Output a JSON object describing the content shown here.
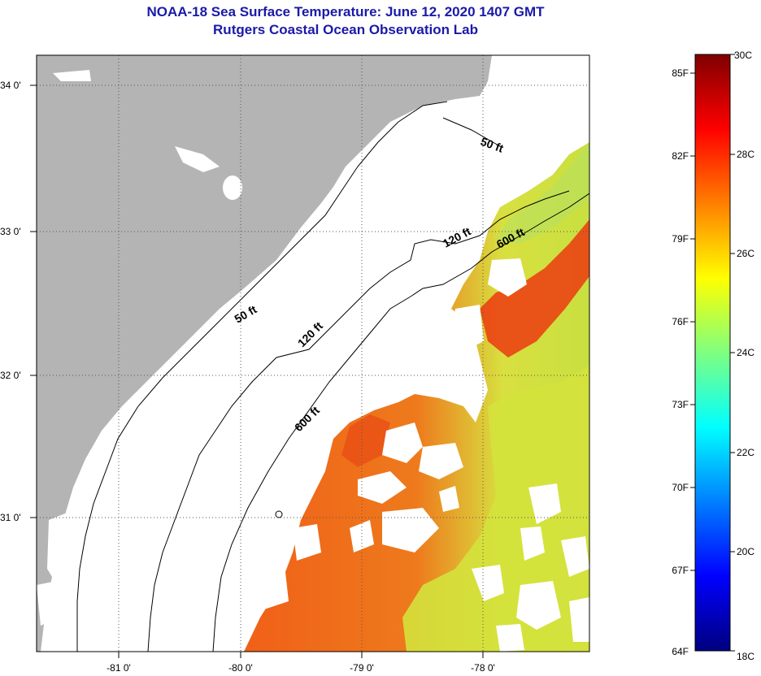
{
  "title": "NOAA-18 Sea Surface Temperature:  June 12, 2020 1407 GMT",
  "subtitle": "Rutgers Coastal Ocean Observation Lab",
  "map": {
    "lon_labels": [
      "-81 0'",
      "-80 0'",
      "-79 0'",
      "-78 0'"
    ],
    "lat_labels": [
      "34 0'",
      "33 0'",
      "32 0'",
      "31 0'"
    ],
    "contours": [
      "50 ft",
      "50 ft",
      "120 ft",
      "120 ft",
      "600 ft",
      "600 ft"
    ],
    "colors": {
      "land": "#b4b4b4",
      "gridline": "#555555"
    }
  },
  "colorbar": {
    "fahrenheit": [
      "85F",
      "82F",
      "79F",
      "76F",
      "73F",
      "70F",
      "67F",
      "64F"
    ],
    "celsius": [
      "30C",
      "28C",
      "26C",
      "24C",
      "22C",
      "20C",
      "18C"
    ],
    "range_c": [
      18,
      30
    ],
    "stops": [
      "#00007f",
      "#0000ff",
      "#007fff",
      "#00ffff",
      "#7fff7f",
      "#ffff00",
      "#ff7f00",
      "#ff0000",
      "#7f0000"
    ]
  }
}
